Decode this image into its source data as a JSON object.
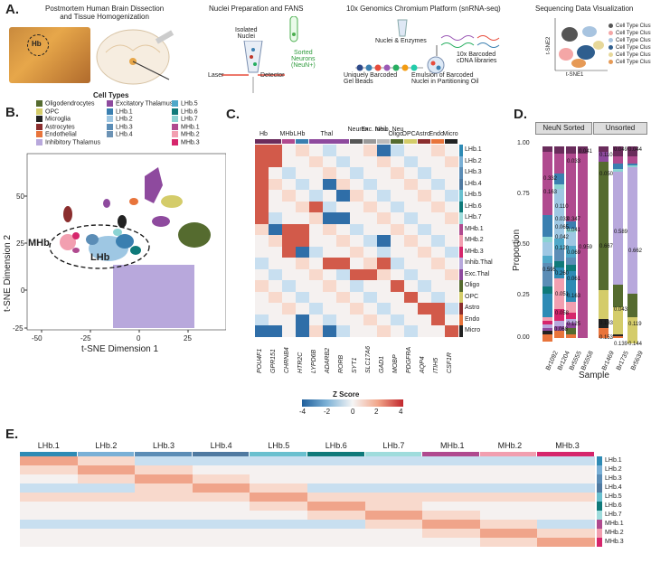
{
  "panels": {
    "a": "A.",
    "b": "B.",
    "c": "C.",
    "d": "D.",
    "e": "E."
  },
  "panelA": {
    "step1": "Postmortem Human Brain Dissection\nand Tissue Homogenization",
    "hb": "Hb",
    "step2": "Nuclei Preparation and FANS",
    "isolated": "Isolated\nNuclei",
    "sorted": "Sorted\nNeurons\n(NeuN+)",
    "laser": "Laser",
    "detector": "Detector",
    "step3": "10x Genomics Chromium Platform (snRNA-seq)",
    "nuclei_enz": "Nuclei & Enzymes",
    "barcoded_beads": "Uniquely Barcoded\nGel Beads",
    "cdna": "10x Barcoded\ncDNA libraries",
    "emulsion": "Emulsion of Barcoded\nNuclei in Partitioning Oil",
    "step4": "Sequencing Data Visualization",
    "tsne1": "t-SNE1",
    "tsne2": "t-SNE2",
    "clusters": [
      "Cell Type Cluster 1",
      "Cell Type Cluster 2",
      "Cell Type Cluster 3",
      "Cell Type Cluster 4",
      "Cell Type Cluster 5",
      "Cell Type Cluster 6"
    ],
    "cluster_colors": [
      "#555555",
      "#f4a6a6",
      "#a8c4e0",
      "#2f5e8e",
      "#e7d89a",
      "#e69a56"
    ]
  },
  "panelB": {
    "legend_title": "Cell Types",
    "legend": [
      {
        "name": "Oligodendrocytes",
        "color": "#556b2f"
      },
      {
        "name": "OPC",
        "color": "#d4cc6a"
      },
      {
        "name": "Microglia",
        "color": "#222222"
      },
      {
        "name": "Astrocytes",
        "color": "#8b2e2e"
      },
      {
        "name": "Endothelial",
        "color": "#e8743b"
      },
      {
        "name": "Inhibitory Thalamus",
        "color": "#b8a8dc"
      },
      {
        "name": "Excitatory Thalamus",
        "color": "#8e4a9e"
      },
      {
        "name": "LHb.1",
        "color": "#3a7fb0"
      },
      {
        "name": "LHb.2",
        "color": "#9ec7e3"
      },
      {
        "name": "LHb.3",
        "color": "#5b8db6"
      },
      {
        "name": "LHb.4",
        "color": "#6c93b5"
      },
      {
        "name": "LHb.5",
        "color": "#4fa8c9"
      },
      {
        "name": "LHb.6",
        "color": "#0f7a7a"
      },
      {
        "name": "LHb.7",
        "color": "#8bd3d3"
      },
      {
        "name": "MHb.1",
        "color": "#b04a8f"
      },
      {
        "name": "MHb.2",
        "color": "#f29fb0"
      },
      {
        "name": "MHb.3",
        "color": "#d6266c"
      }
    ],
    "xlabel": "t-SNE Dimension 1",
    "ylabel": "t-SNE Dimension 2",
    "xticks": [
      "-50",
      "-25",
      "0",
      "25"
    ],
    "yticks": [
      "50",
      "25",
      "0",
      "-25"
    ],
    "mhb": "MHb",
    "lhb": "LHb"
  },
  "panelC": {
    "groups": [
      "Hb",
      "MHb",
      "LHb",
      "Thal",
      "Neuron",
      "Exc. Neu",
      "Inhib. Neu",
      "Oligo",
      "OPC",
      "Astro",
      "Endo",
      "Micro"
    ],
    "rows": [
      "LHb.1",
      "LHb.2",
      "LHb.3",
      "LHb.4",
      "LHb.5",
      "LHb.6",
      "LHb.7",
      "MHb.1",
      "MHb.2",
      "MHb.3",
      "Inhib.Thal",
      "Exc.Thal",
      "Oligo",
      "OPC",
      "Astro",
      "Endo",
      "Micro"
    ],
    "genes": [
      "POU4F1",
      "GPR151",
      "CHRNB4",
      "HTR2C",
      "LYPD6B",
      "ADARB2",
      "RORB",
      "SYT1",
      "SLC17A6",
      "GAD1",
      "MOBP",
      "PDGFRA",
      "AQP4",
      "ITIH5",
      "CSF1R"
    ],
    "zscore_title": "Z Score",
    "zticks": [
      "-4",
      "-2",
      "0",
      "2",
      "4"
    ]
  },
  "panelD": {
    "facets": [
      "NeuN Sorted",
      "Unsorted"
    ],
    "ylabel": "Proportion",
    "xlabel": "Sample",
    "yticks": [
      "1.00",
      "0.75",
      "0.50",
      "0.25",
      "0.00"
    ],
    "samples_sorted": [
      "Br1092",
      "Br1204",
      "Br5555",
      "Br5558"
    ],
    "samples_unsorted": [
      "Br1469",
      "Br1735",
      "Br5639"
    ],
    "labels": [
      "0.332",
      "0.163",
      "0.110",
      "0.033",
      "0.065",
      "0.042",
      "0.120",
      "0.039",
      "0.595",
      "0.260",
      "0.051",
      "0.058",
      "0.068",
      "0.347",
      "0.041",
      "0.069",
      "0.039",
      "0.061",
      "0.163",
      "0.125",
      "0.959",
      "0.041",
      "0.110",
      "0.049",
      "0.044",
      "0.050",
      "0.589",
      "0.662",
      "0.667",
      "0.043",
      "0.133",
      "0.119",
      "0.153",
      "0.139",
      "0.144",
      "0.033"
    ]
  },
  "panelE": {
    "clusters": [
      "LHb.1",
      "LHb.2",
      "LHb.3",
      "LHb.4",
      "LHb.5",
      "LHb.6",
      "LHb.7",
      "MHb.1",
      "MHb.2",
      "MHb.3"
    ],
    "cluster_colors": [
      "#2e8bb5",
      "#7ab0d6",
      "#5b8db6",
      "#4f7aa1",
      "#69c0cf",
      "#0f7a7a",
      "#9fdcdc",
      "#b04a8f",
      "#f29fb0",
      "#d6266c"
    ],
    "row_labels": [
      "LHb.1",
      "LHb.2",
      "LHb.3",
      "LHb.4",
      "LHb.5",
      "LHb.6",
      "LHb.7",
      "MHb.1",
      "MHb.2",
      "MHb.3"
    ]
  }
}
